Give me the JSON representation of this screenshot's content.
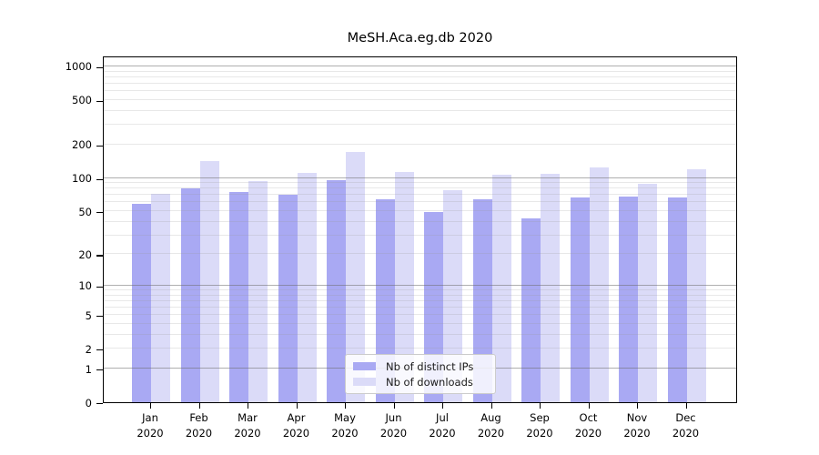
{
  "chart_data": {
    "type": "bar",
    "title": "MeSH.Aca.eg.db 2020",
    "scale": "log10(1+x)",
    "categories": [
      "Jan",
      "Feb",
      "Mar",
      "Apr",
      "May",
      "Jun",
      "Jul",
      "Aug",
      "Sep",
      "Oct",
      "Nov",
      "Dec"
    ],
    "year_label": "2020",
    "series": [
      {
        "name": "Nb of distinct IPs",
        "color": "#a9a9f3",
        "values": [
          58,
          80,
          74,
          70,
          96,
          64,
          49,
          64,
          43,
          67,
          68,
          67
        ]
      },
      {
        "name": "Nb of downloads",
        "color": "#dbdbf8",
        "values": [
          72,
          142,
          94,
          112,
          170,
          113,
          77,
          106,
          109,
          125,
          89,
          120
        ]
      }
    ],
    "y_ticks": [
      0,
      1,
      2,
      5,
      10,
      20,
      50,
      100,
      200,
      500,
      1000
    ],
    "ylim": [
      0,
      1250
    ],
    "grid": true,
    "legend_position": "bottom-center",
    "colors": {
      "axis": "#000000",
      "major_grid": "#b5b5b5",
      "minor_grid": "#e7e7e7"
    }
  }
}
